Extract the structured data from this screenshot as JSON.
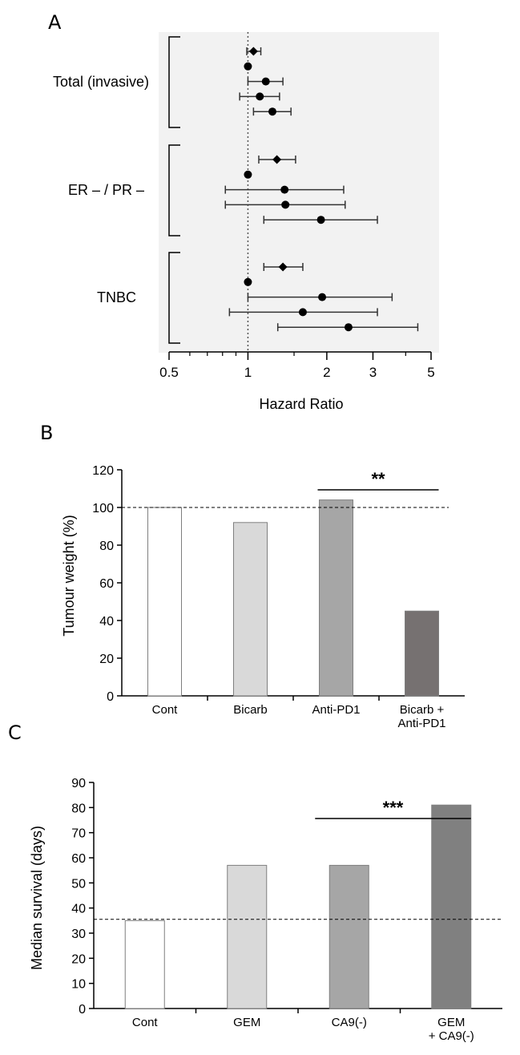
{
  "chart_data": [
    {
      "panel": "A",
      "type": "scatter",
      "xlabel": "Hazard Ratio",
      "xscale": "log",
      "xlim": [
        0.5,
        5
      ],
      "xticks": [
        "0.5",
        "1",
        "2",
        "3",
        "5"
      ],
      "reference_line": 1,
      "groups": [
        {
          "label": "Total (invasive)",
          "rows": [
            {
              "marker": "diamond",
              "hr": 1.05,
              "lo": 0.99,
              "hi": 1.12
            },
            {
              "marker": "circle",
              "hr": 1.0,
              "lo": 1.0,
              "hi": 1.0
            },
            {
              "marker": "circle",
              "hr": 1.17,
              "lo": 1.0,
              "hi": 1.36
            },
            {
              "marker": "circle",
              "hr": 1.11,
              "lo": 0.93,
              "hi": 1.32
            },
            {
              "marker": "circle",
              "hr": 1.24,
              "lo": 1.05,
              "hi": 1.46
            }
          ]
        },
        {
          "label": "ER – / PR –",
          "rows": [
            {
              "marker": "diamond",
              "hr": 1.29,
              "lo": 1.1,
              "hi": 1.52
            },
            {
              "marker": "circle",
              "hr": 1.0,
              "lo": 1.0,
              "hi": 1.0
            },
            {
              "marker": "circle",
              "hr": 1.38,
              "lo": 0.82,
              "hi": 2.32
            },
            {
              "marker": "circle",
              "hr": 1.39,
              "lo": 0.82,
              "hi": 2.35
            },
            {
              "marker": "circle",
              "hr": 1.9,
              "lo": 1.15,
              "hi": 3.12
            }
          ]
        },
        {
          "label": "TNBC",
          "rows": [
            {
              "marker": "diamond",
              "hr": 1.36,
              "lo": 1.15,
              "hi": 1.62
            },
            {
              "marker": "circle",
              "hr": 1.0,
              "lo": 1.0,
              "hi": 1.0
            },
            {
              "marker": "circle",
              "hr": 1.92,
              "lo": 1.0,
              "hi": 3.55
            },
            {
              "marker": "circle",
              "hr": 1.62,
              "lo": 0.85,
              "hi": 3.12
            },
            {
              "marker": "circle",
              "hr": 2.42,
              "lo": 1.3,
              "hi": 4.45
            }
          ]
        }
      ]
    },
    {
      "panel": "B",
      "type": "bar",
      "ylabel": "Tumour weight (%)",
      "ylim": [
        0,
        120
      ],
      "yticks": [
        0,
        20,
        40,
        60,
        80,
        100,
        120
      ],
      "reference_line": 100,
      "categories": [
        [
          "Cont"
        ],
        [
          "Bicarb"
        ],
        [
          "Anti-PD1"
        ],
        [
          "Bicarb +",
          "Anti-PD1"
        ]
      ],
      "values": [
        100,
        92,
        104,
        45
      ],
      "colors": [
        "#ffffff",
        "#d9d9d9",
        "#a6a6a6",
        "#767171"
      ],
      "significance": {
        "label": "**",
        "from": 2,
        "to": 3
      }
    },
    {
      "panel": "C",
      "type": "bar",
      "ylabel": "Median survival (days)",
      "ylim": [
        0,
        90
      ],
      "yticks": [
        0,
        10,
        20,
        30,
        40,
        50,
        60,
        70,
        80,
        90
      ],
      "reference_line": 35.5,
      "categories": [
        [
          "Cont"
        ],
        [
          "GEM"
        ],
        [
          "CA9(-)"
        ],
        [
          "GEM",
          "+ CA9(-)"
        ]
      ],
      "values": [
        35,
        57,
        57,
        81
      ],
      "colors": [
        "#ffffff",
        "#d9d9d9",
        "#a6a6a6",
        "#808080"
      ],
      "significance": {
        "label": "***",
        "from": 2,
        "to": 3
      }
    }
  ]
}
